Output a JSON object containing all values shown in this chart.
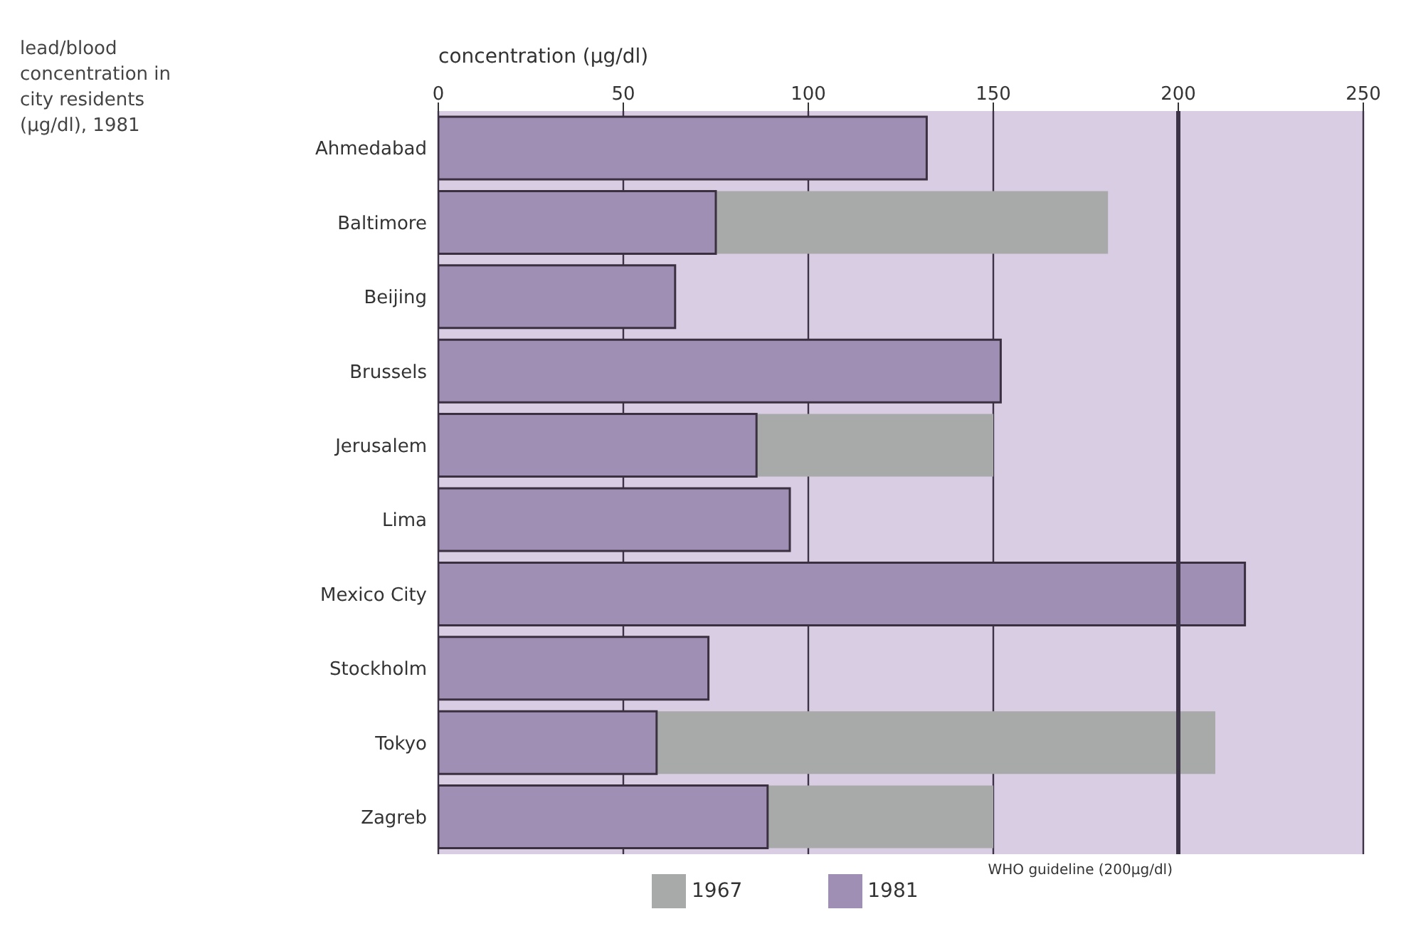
{
  "chart_data": {
    "type": "bar",
    "orientation": "horizontal",
    "title": "lead/blood concentration in city residents (µg/dl), 1981",
    "xlabel": "concentration (µg/dl)",
    "categories": [
      "Ahmedabad",
      "Baltimore",
      "Beijing",
      "Brussels",
      "Jerusalem",
      "Lima",
      "Mexico City",
      "Stockholm",
      "Tokyo",
      "Zagreb"
    ],
    "series": [
      {
        "name": "1967",
        "color": "#a7aaa9",
        "values": [
          null,
          181,
          null,
          null,
          150,
          null,
          null,
          null,
          210,
          150
        ]
      },
      {
        "name": "1981",
        "color": "#a08fb5",
        "values": [
          132,
          75,
          64,
          152,
          86,
          95,
          218,
          73,
          59,
          89
        ]
      }
    ],
    "xlim": [
      0,
      250
    ],
    "xticks": [
      0,
      50,
      100,
      150,
      200,
      250
    ],
    "grid": "x",
    "legend": "bottom left",
    "ref_lines": [
      {
        "axis": "x",
        "value": 200,
        "label": "WHO guideline (200µg/dl)",
        "color": "#3d3346"
      }
    ]
  }
}
